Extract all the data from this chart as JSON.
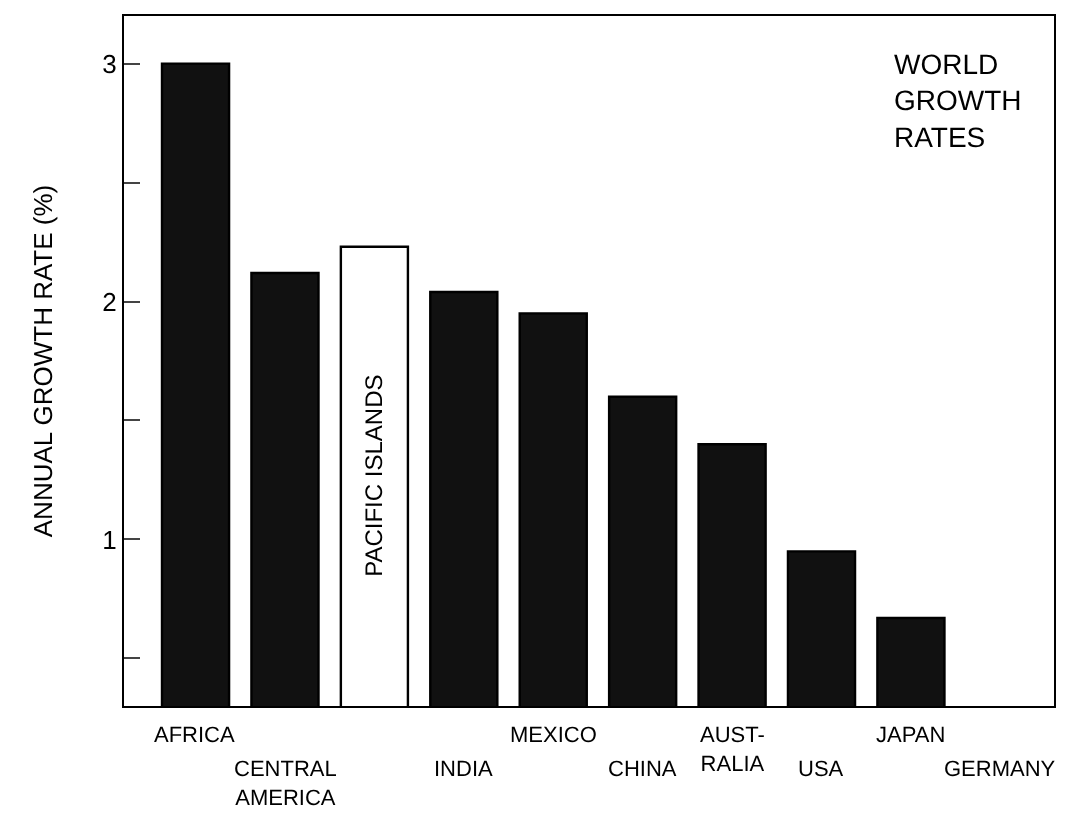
{
  "chart_data": {
    "type": "bar",
    "title": "WORLD GROWTH RATES",
    "ylabel": "ANNUAL GROWTH RATE (%)",
    "categories": [
      "AFRICA",
      "CENTRAL AMERICA",
      "PACIFIC ISLANDS",
      "INDIA",
      "MEXICO",
      "CHINA",
      "AUST- RALIA",
      "USA",
      "JAPAN",
      "GERMANY"
    ],
    "values": [
      3.0,
      2.12,
      2.23,
      2.04,
      1.95,
      1.6,
      1.4,
      0.95,
      0.67,
      null
    ],
    "colors": [
      "#111111",
      "#111111",
      "#ffffff",
      "#111111",
      "#111111",
      "#111111",
      "#111111",
      "#111111",
      "#111111",
      "#111111"
    ],
    "ylim": [
      0.3,
      3.2
    ],
    "yticks": [
      {
        "value": 0.5,
        "label": null
      },
      1,
      {
        "value": 1.5,
        "label": null
      },
      2,
      {
        "value": 2.5,
        "label": null
      },
      3
    ],
    "grid": false
  }
}
